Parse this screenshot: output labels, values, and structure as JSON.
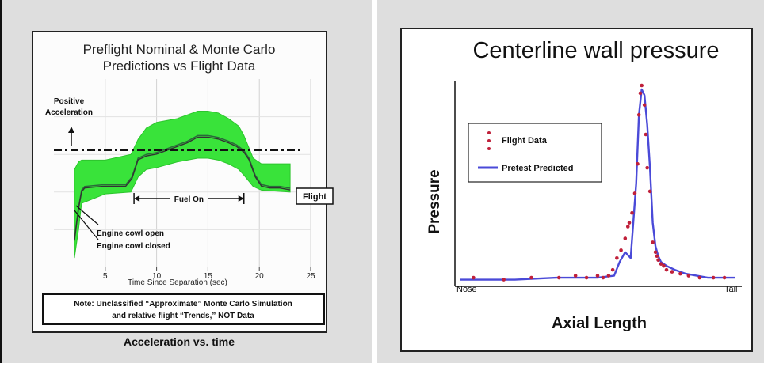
{
  "chart_data": [
    {
      "type": "line",
      "title": "Preflight Nominal & Monte Carlo Predictions vs Flight Data",
      "title_lines": [
        "Preflight Nominal & Monte Carlo",
        "Predictions vs Flight Data"
      ],
      "xlabel": "Time Since Separation (sec)",
      "ylabel": "",
      "xlim": [
        0,
        25
      ],
      "xticks": [
        "5",
        "10",
        "15",
        "20",
        "25"
      ],
      "grid": true,
      "positive_accel_label": [
        "Positive",
        "Acceleration"
      ],
      "positive_accel_level": 0.62,
      "fuel_on_label": "Fuel On",
      "fuel_on_range": [
        7.8,
        18.5
      ],
      "flight_label": "Flight",
      "annotations": [
        "Engine cowl open",
        "Engine cowl closed"
      ],
      "note_lines": [
        "Note: Unclassified “Approximate” Monte Carlo Simulation",
        "and relative flight “Trends,” NOT Data"
      ],
      "caption": "Acceleration vs. time",
      "series": [
        {
          "name": "Flight",
          "x": [
            2.0,
            2.4,
            2.7,
            3.0,
            5.0,
            7.0,
            7.6,
            8.2,
            9.0,
            10.0,
            11.0,
            12.0,
            13.0,
            14.0,
            15.0,
            16.0,
            17.0,
            17.8,
            18.5,
            19.0,
            19.6,
            20.2,
            21.0,
            22.0,
            23.0
          ],
          "y": [
            0.15,
            0.32,
            0.41,
            0.43,
            0.44,
            0.44,
            0.48,
            0.58,
            0.6,
            0.61,
            0.63,
            0.65,
            0.67,
            0.7,
            0.7,
            0.69,
            0.67,
            0.65,
            0.62,
            0.58,
            0.49,
            0.44,
            0.43,
            0.43,
            0.42
          ]
        },
        {
          "name": "Monte Carlo band",
          "x": [
            2.0,
            2.4,
            2.7,
            5.0,
            7.5,
            8.2,
            9.0,
            10.0,
            12.0,
            14.0,
            15.0,
            16.0,
            17.0,
            18.0,
            18.5,
            19.4,
            20.2,
            23.0
          ],
          "upper": [
            0.52,
            0.56,
            0.57,
            0.57,
            0.6,
            0.68,
            0.74,
            0.77,
            0.79,
            0.83,
            0.83,
            0.82,
            0.79,
            0.75,
            0.7,
            0.58,
            0.55,
            0.55
          ],
          "lower": [
            0.05,
            0.2,
            0.34,
            0.39,
            0.4,
            0.48,
            0.52,
            0.53,
            0.56,
            0.58,
            0.58,
            0.57,
            0.55,
            0.52,
            0.49,
            0.43,
            0.41,
            0.4
          ]
        }
      ]
    },
    {
      "type": "line",
      "title": "Centerline wall pressure",
      "xlabel": "Axial Length",
      "ylabel": "Pressure",
      "x_start_label": "Nose",
      "x_end_label": "Tail",
      "xlim": [
        0,
        1
      ],
      "ylim": [
        0,
        1
      ],
      "legend": [
        "Flight Data",
        "Pretest Predicted"
      ],
      "legend_position": "top-left",
      "series": [
        {
          "name": "Pretest Predicted",
          "x": [
            0.0,
            0.2,
            0.35,
            0.5,
            0.56,
            0.58,
            0.6,
            0.62,
            0.64,
            0.65,
            0.66,
            0.67,
            0.68,
            0.69,
            0.7,
            0.71,
            0.72,
            0.73,
            0.75,
            0.78,
            0.82,
            0.86,
            0.9,
            1.0
          ],
          "y": [
            0.01,
            0.01,
            0.02,
            0.02,
            0.03,
            0.1,
            0.15,
            0.12,
            0.5,
            0.85,
            0.98,
            0.95,
            0.8,
            0.58,
            0.3,
            0.18,
            0.13,
            0.1,
            0.08,
            0.06,
            0.04,
            0.03,
            0.02,
            0.02
          ]
        },
        {
          "name": "Flight Data",
          "x": [
            0.05,
            0.16,
            0.26,
            0.36,
            0.42,
            0.46,
            0.5,
            0.52,
            0.54,
            0.555,
            0.57,
            0.585,
            0.6,
            0.61,
            0.615,
            0.625,
            0.635,
            0.645,
            0.65,
            0.655,
            0.66,
            0.67,
            0.675,
            0.68,
            0.69,
            0.7,
            0.71,
            0.715,
            0.72,
            0.73,
            0.74,
            0.75,
            0.77,
            0.8,
            0.83,
            0.87,
            0.92,
            0.96
          ],
          "y": [
            0.02,
            0.01,
            0.02,
            0.02,
            0.03,
            0.02,
            0.03,
            0.02,
            0.03,
            0.06,
            0.12,
            0.16,
            0.22,
            0.28,
            0.3,
            0.35,
            0.45,
            0.6,
            0.85,
            0.96,
            1.0,
            0.9,
            0.75,
            0.58,
            0.46,
            0.2,
            0.15,
            0.13,
            0.11,
            0.09,
            0.08,
            0.06,
            0.05,
            0.04,
            0.03,
            0.02,
            0.02,
            0.02
          ]
        }
      ]
    }
  ]
}
